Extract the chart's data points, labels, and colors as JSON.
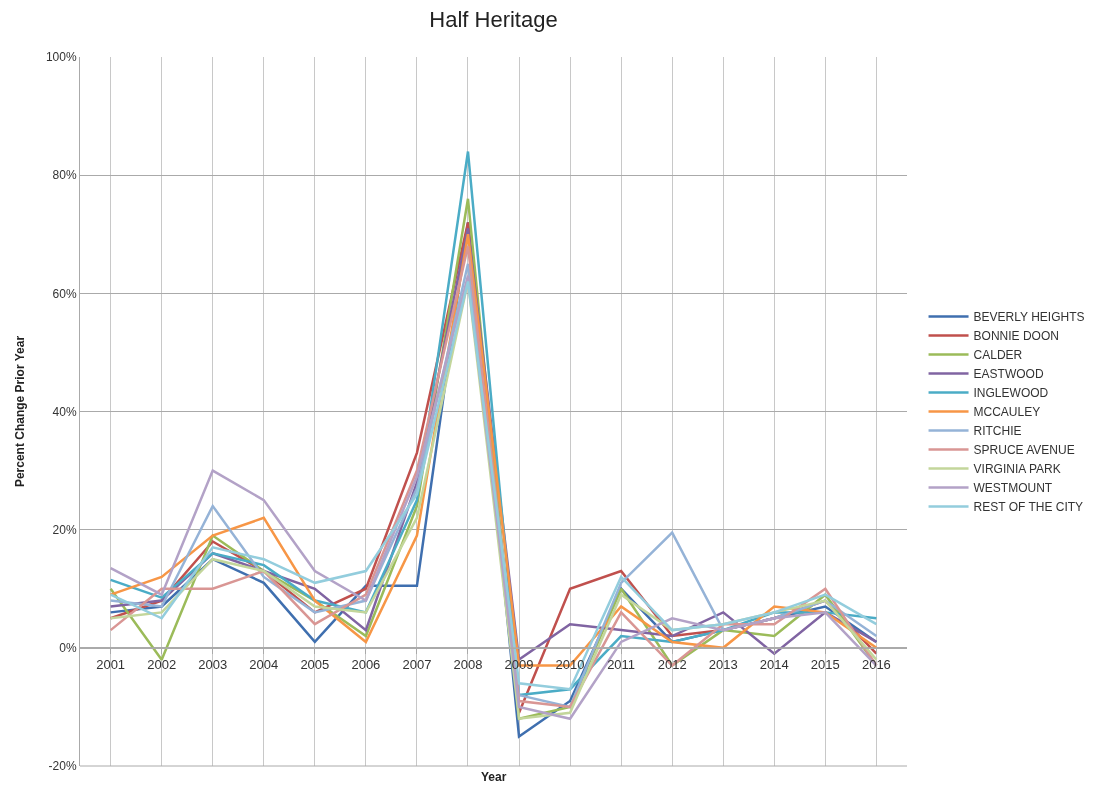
{
  "chart_data": {
    "type": "line",
    "title": "Half Heritage",
    "xlabel": "Year",
    "ylabel": "Percent Change Prior Year",
    "categories": [
      "2001",
      "2002",
      "2003",
      "2004",
      "2005",
      "2006",
      "2007",
      "2008",
      "2009",
      "2010",
      "2011",
      "2012",
      "2013",
      "2014",
      "2015",
      "2016"
    ],
    "ylim": [
      -20,
      100
    ],
    "yticks": [
      {
        "value": -20,
        "label": "-20%"
      },
      {
        "value": 0,
        "label": "0%"
      },
      {
        "value": 20,
        "label": "20%"
      },
      {
        "value": 40,
        "label": "40%"
      },
      {
        "value": 60,
        "label": "60%"
      },
      {
        "value": 80,
        "label": "80%"
      },
      {
        "value": 100,
        "label": "100%"
      }
    ],
    "grid": true,
    "legend": "right",
    "marker": "none",
    "line_style": "solid",
    "series": [
      {
        "name": "BEVERLY HEIGHTS",
        "color": "#3f6faf",
        "values": [
          6,
          7,
          15,
          11,
          1,
          10.5,
          10.5,
          72,
          -15,
          -9,
          10,
          1,
          3,
          5,
          7,
          1
        ]
      },
      {
        "name": "BONNIE DOON",
        "color": "#c0504d",
        "values": [
          5,
          8,
          18,
          13,
          6,
          10,
          33,
          72,
          -11,
          10,
          13,
          2,
          3,
          5,
          8,
          -1
        ]
      },
      {
        "name": "CALDER",
        "color": "#9bbb59",
        "values": [
          10,
          -2,
          19,
          13,
          8,
          2,
          24,
          76,
          -12,
          -10,
          10,
          -3,
          3,
          2,
          9,
          -3
        ]
      },
      {
        "name": "EASTWOOD",
        "color": "#8064a2",
        "values": [
          7,
          8,
          16,
          13,
          10,
          3,
          28,
          71,
          -2,
          4,
          3,
          2,
          6,
          -1,
          6,
          1
        ]
      },
      {
        "name": "INGLEWOOD",
        "color": "#4bacc6",
        "values": [
          11.5,
          8.5,
          16,
          14,
          8,
          6,
          25,
          84,
          -8,
          -7,
          2,
          1,
          3,
          6,
          6,
          5
        ]
      },
      {
        "name": "MCCAULEY",
        "color": "#f79646",
        "values": [
          9,
          12,
          19,
          22,
          8,
          1,
          19,
          70,
          -3,
          -3,
          7,
          1,
          0,
          7,
          6,
          0
        ]
      },
      {
        "name": "RITCHIE",
        "color": "#95b3d7",
        "values": [
          8,
          7,
          24,
          12,
          6,
          8,
          27,
          65,
          -8,
          -10,
          11,
          19.5,
          3,
          5,
          8,
          2
        ]
      },
      {
        "name": "SPRUCE AVENUE",
        "color": "#d99694",
        "values": [
          3,
          10,
          10,
          13,
          4,
          9,
          30,
          68,
          -9,
          -10,
          6,
          -3,
          4,
          4,
          10,
          -3
        ]
      },
      {
        "name": "VIRGINIA PARK",
        "color": "#c3d69b",
        "values": [
          5,
          6,
          15,
          13,
          7,
          6,
          22,
          62,
          -12,
          -11,
          9,
          3,
          4,
          6,
          8,
          -2
        ]
      },
      {
        "name": "WESTMOUNT",
        "color": "#b3a2c7",
        "values": [
          13.5,
          9,
          30,
          25,
          13,
          8,
          29,
          63,
          -10,
          -12,
          1,
          5,
          3,
          5,
          6,
          -3
        ]
      },
      {
        "name": "REST OF THE CITY",
        "color": "#93cddd",
        "values": [
          9,
          5,
          17,
          15,
          11,
          13,
          26,
          62,
          -6,
          -7,
          12,
          3,
          4,
          6,
          9,
          4
        ]
      }
    ]
  }
}
